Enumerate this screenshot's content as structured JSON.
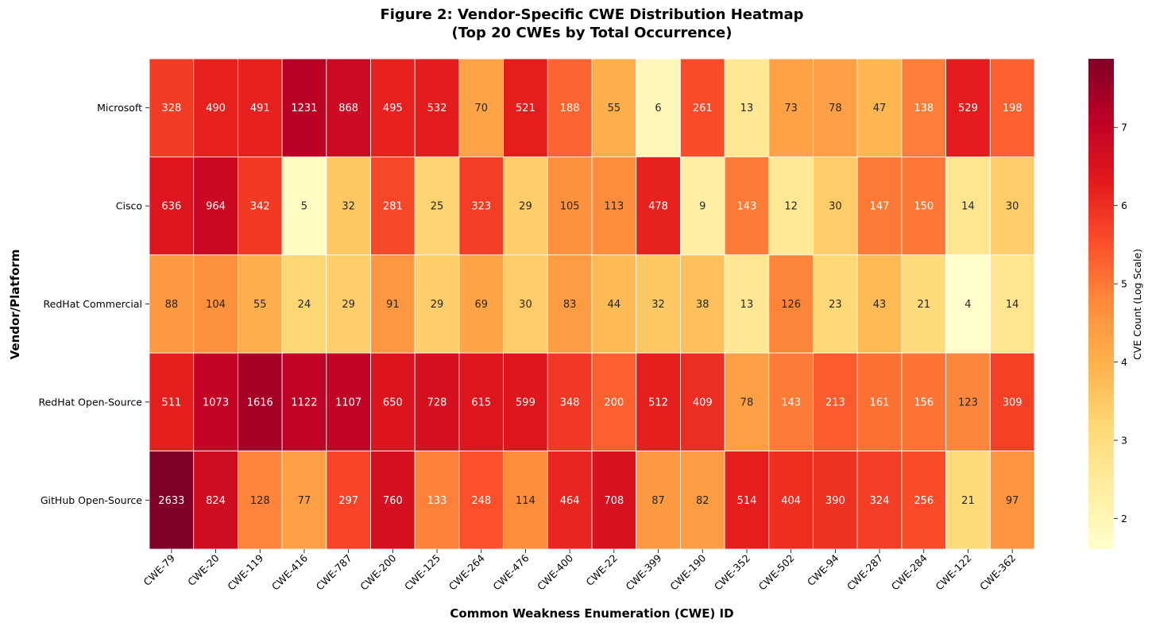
{
  "chart_data": {
    "type": "heatmap",
    "title_lines": [
      "Figure 2: Vendor-Specific CWE Distribution Heatmap",
      "(Top 20 CWEs by Total Occurrence)"
    ],
    "xlabel": "Common Weakness Enumeration (CWE) ID",
    "ylabel": "Vendor/Platform",
    "x_categories": [
      "CWE-79",
      "CWE-20",
      "CWE-119",
      "CWE-416",
      "CWE-787",
      "CWE-200",
      "CWE-125",
      "CWE-264",
      "CWE-476",
      "CWE-400",
      "CWE-22",
      "CWE-399",
      "CWE-190",
      "CWE-352",
      "CWE-502",
      "CWE-94",
      "CWE-287",
      "CWE-284",
      "CWE-122",
      "CWE-362"
    ],
    "y_categories": [
      "Microsoft",
      "Cisco",
      "RedHat Commercial",
      "RedHat Open-Source",
      "GitHub Open-Source"
    ],
    "values": [
      [
        328,
        490,
        491,
        1231,
        868,
        495,
        532,
        70,
        521,
        188,
        55,
        6,
        261,
        13,
        73,
        78,
        47,
        138,
        529,
        198
      ],
      [
        636,
        964,
        342,
        5,
        32,
        281,
        25,
        323,
        29,
        105,
        113,
        478,
        9,
        143,
        12,
        30,
        147,
        150,
        14,
        30
      ],
      [
        88,
        104,
        55,
        24,
        29,
        91,
        29,
        69,
        30,
        83,
        44,
        32,
        38,
        13,
        126,
        23,
        43,
        21,
        4,
        14
      ],
      [
        511,
        1073,
        1616,
        1122,
        1107,
        650,
        728,
        615,
        599,
        348,
        200,
        512,
        409,
        78,
        143,
        213,
        161,
        156,
        123,
        309
      ],
      [
        2633,
        824,
        128,
        77,
        297,
        760,
        133,
        248,
        114,
        464,
        708,
        87,
        82,
        514,
        404,
        390,
        324,
        256,
        21,
        97
      ]
    ],
    "color_scale": "log1p",
    "colormap": "YlOrRd",
    "colormap_stops": [
      "#ffffcc",
      "#ffeda0",
      "#fed976",
      "#feb24c",
      "#fd8d3c",
      "#fc4e2a",
      "#e31a1c",
      "#bd0026",
      "#800026"
    ],
    "colorbar": {
      "label": "CVE Count (Log Scale)",
      "range": [
        1.609,
        7.876
      ],
      "ticks": [
        "2",
        "3",
        "4",
        "5",
        "6",
        "7"
      ]
    },
    "grid": false,
    "legend": "colorbar-right"
  }
}
